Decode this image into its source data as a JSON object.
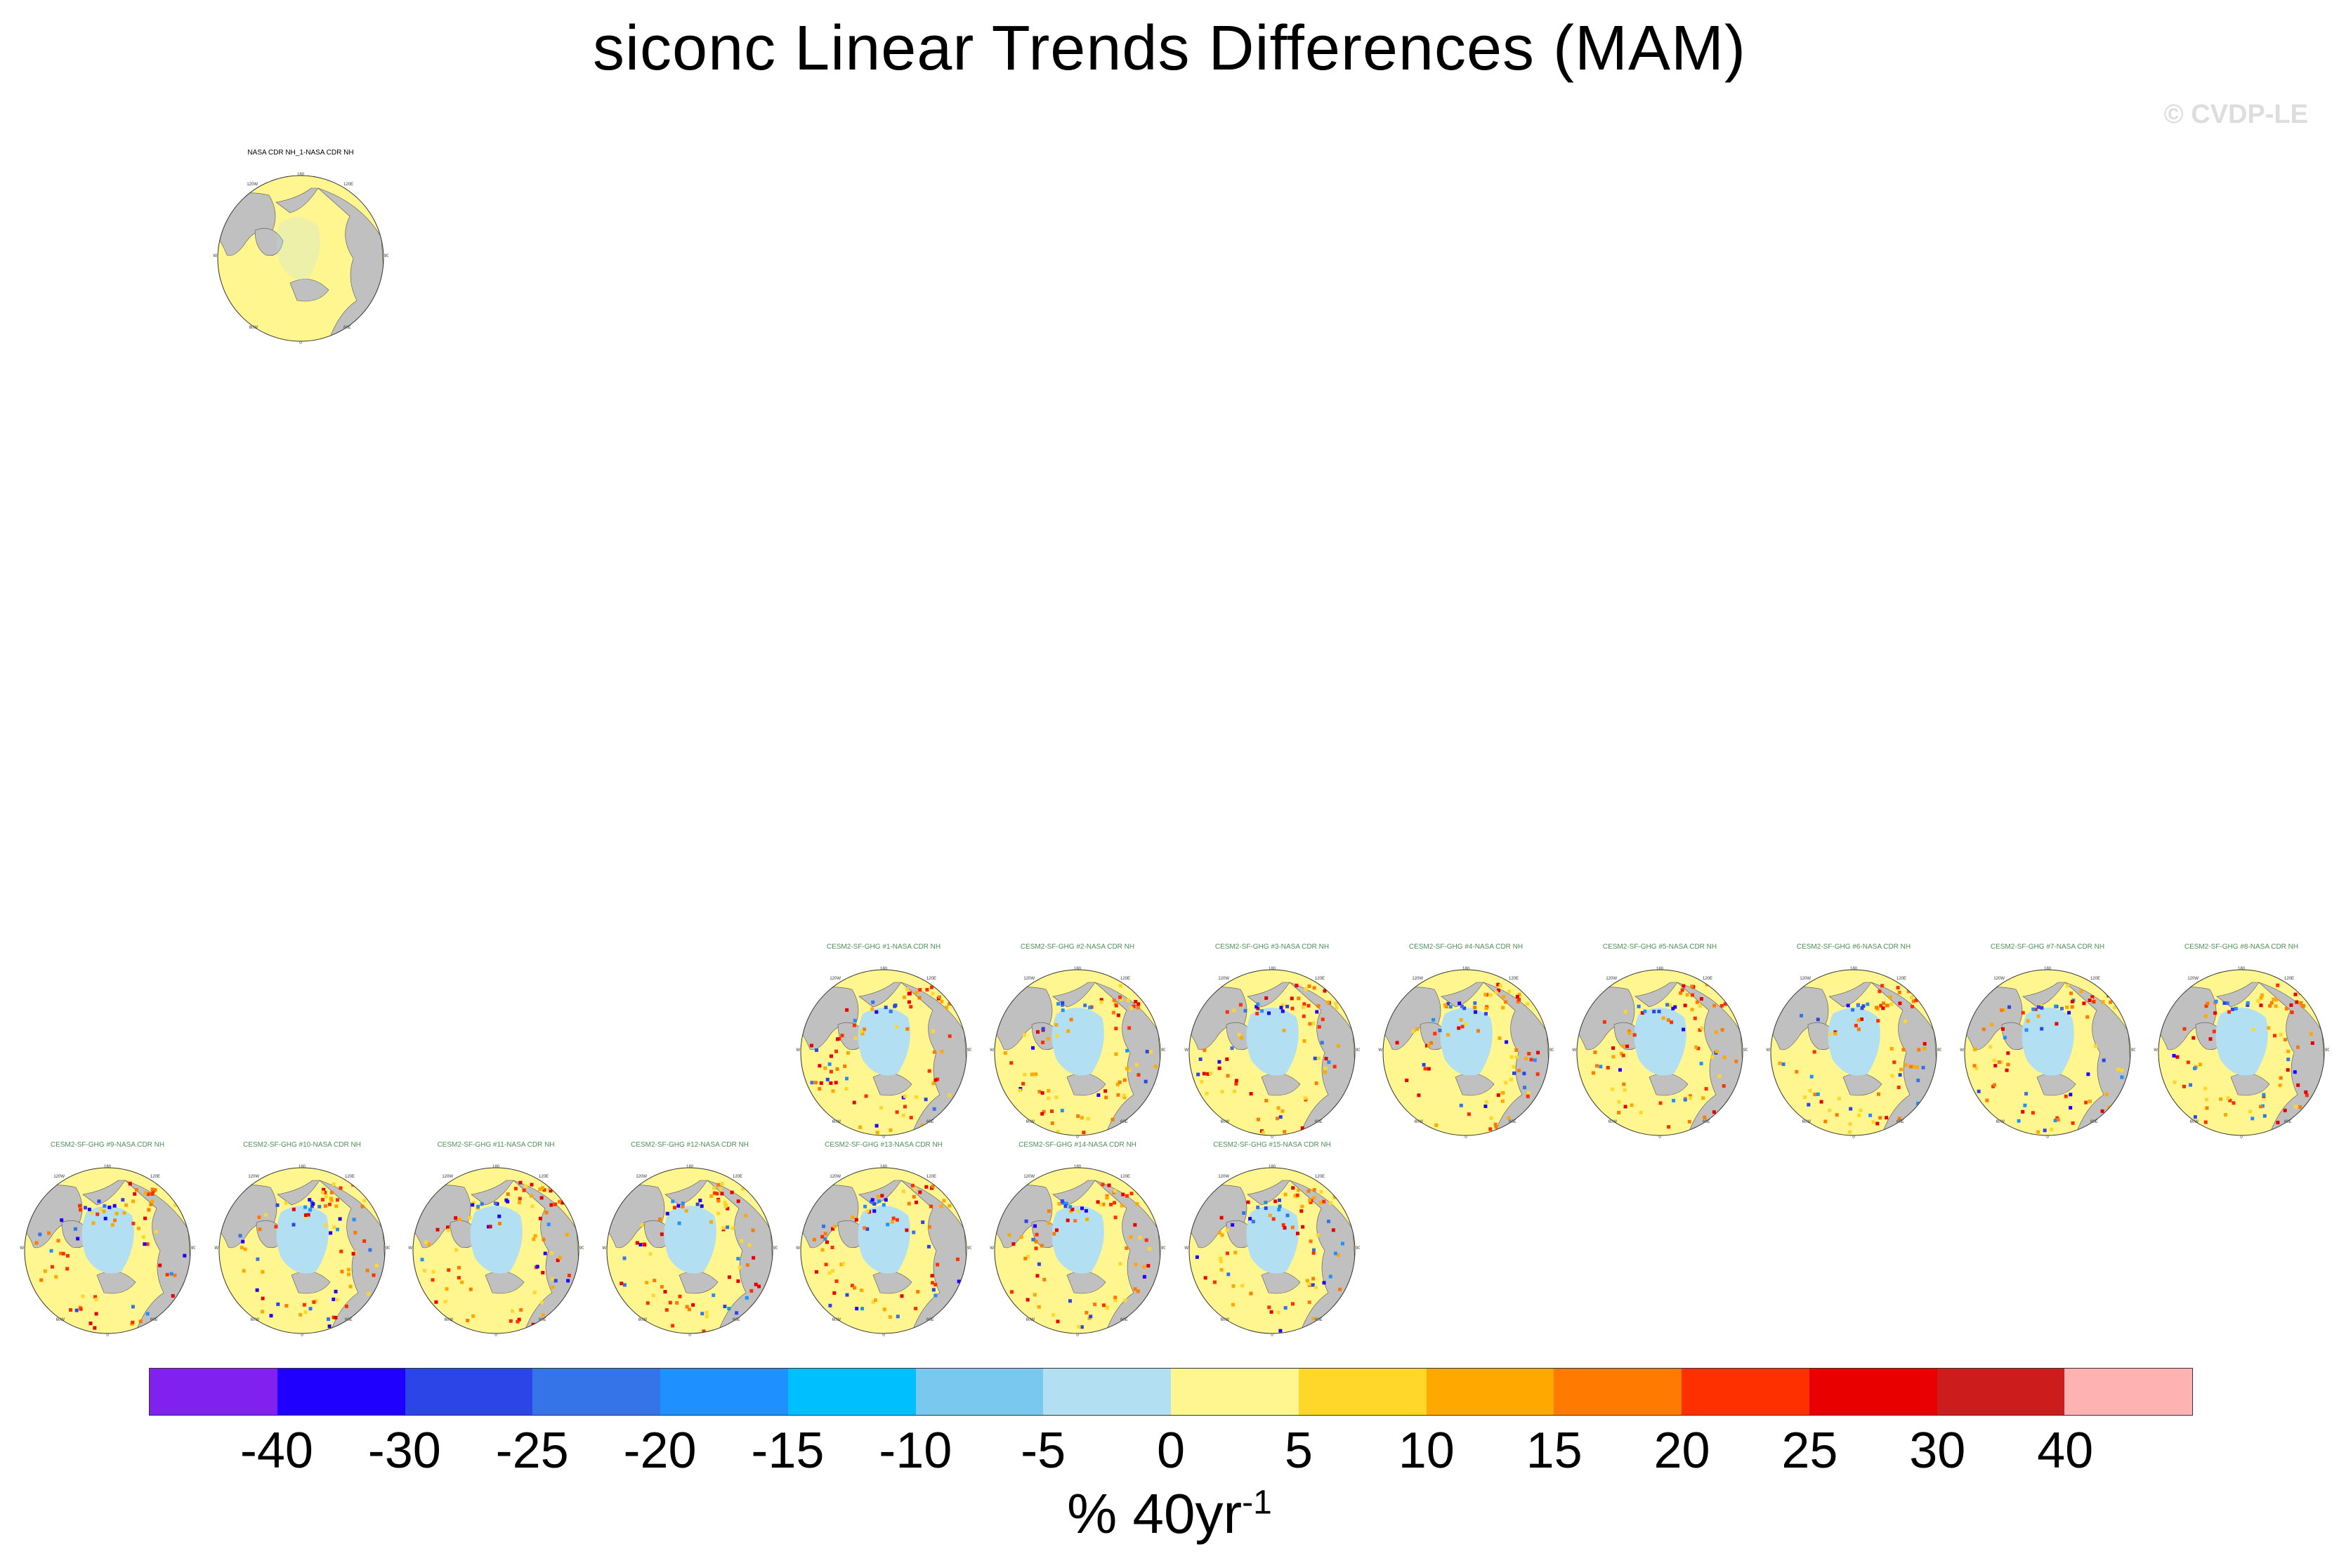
{
  "title": "siconc Linear Trends Differences (MAM)",
  "copyright": "© CVDP-LE",
  "colorbar": {
    "labels": [
      "-40",
      "-30",
      "-25",
      "-20",
      "-15",
      "-10",
      "-5",
      "0",
      "5",
      "10",
      "15",
      "20",
      "25",
      "30",
      "40"
    ],
    "colors": [
      "#8121f0",
      "#1f00ff",
      "#2c45e6",
      "#3573e8",
      "#1e90ff",
      "#00bfff",
      "#78c8f0",
      "#b3dff3",
      "#fff68f",
      "#ffd72a",
      "#ffa800",
      "#ff7a00",
      "#ff3000",
      "#e80000",
      "#cd1c1c",
      "#ffb2b2"
    ],
    "units_main": "% 40yr",
    "units_sup": "-1"
  },
  "map_labels": {
    "top": "180",
    "upper_left": "120W",
    "upper_right": "120E",
    "left": "90W",
    "right": "90E",
    "lower_left": "60W",
    "lower_right": "60E",
    "bottom": "0"
  },
  "chart_data": {
    "type": "heatmap",
    "title": "siconc Linear Trends Differences (MAM)",
    "units": "% 40yr^-1",
    "levels": [
      -40,
      -30,
      -25,
      -20,
      -15,
      -10,
      -5,
      0,
      5,
      10,
      15,
      20,
      25,
      30,
      40
    ],
    "panels": [
      {
        "title": "NASA CDR NH_1-NASA CDR NH"
      },
      {
        "title": "CESM2-SF-GHG #1-NASA CDR NH"
      },
      {
        "title": "CESM2-SF-GHG #2-NASA CDR NH"
      },
      {
        "title": "CESM2-SF-GHG #3-NASA CDR NH"
      },
      {
        "title": "CESM2-SF-GHG #4-NASA CDR NH"
      },
      {
        "title": "CESM2-SF-GHG #5-NASA CDR NH"
      },
      {
        "title": "CESM2-SF-GHG #6-NASA CDR NH"
      },
      {
        "title": "CESM2-SF-GHG #7-NASA CDR NH"
      },
      {
        "title": "CESM2-SF-GHG #8-NASA CDR NH"
      },
      {
        "title": "CESM2-SF-GHG #9-NASA CDR NH"
      },
      {
        "title": "CESM2-SF-GHG #10-NASA CDR NH"
      },
      {
        "title": "CESM2-SF-GHG #11-NASA CDR NH"
      },
      {
        "title": "CESM2-SF-GHG #12-NASA CDR NH"
      },
      {
        "title": "CESM2-SF-GHG #13-NASA CDR NH"
      },
      {
        "title": "CESM2-SF-GHG #14-NASA CDR NH"
      },
      {
        "title": "CESM2-SF-GHG #15-NASA CDR NH"
      }
    ]
  }
}
